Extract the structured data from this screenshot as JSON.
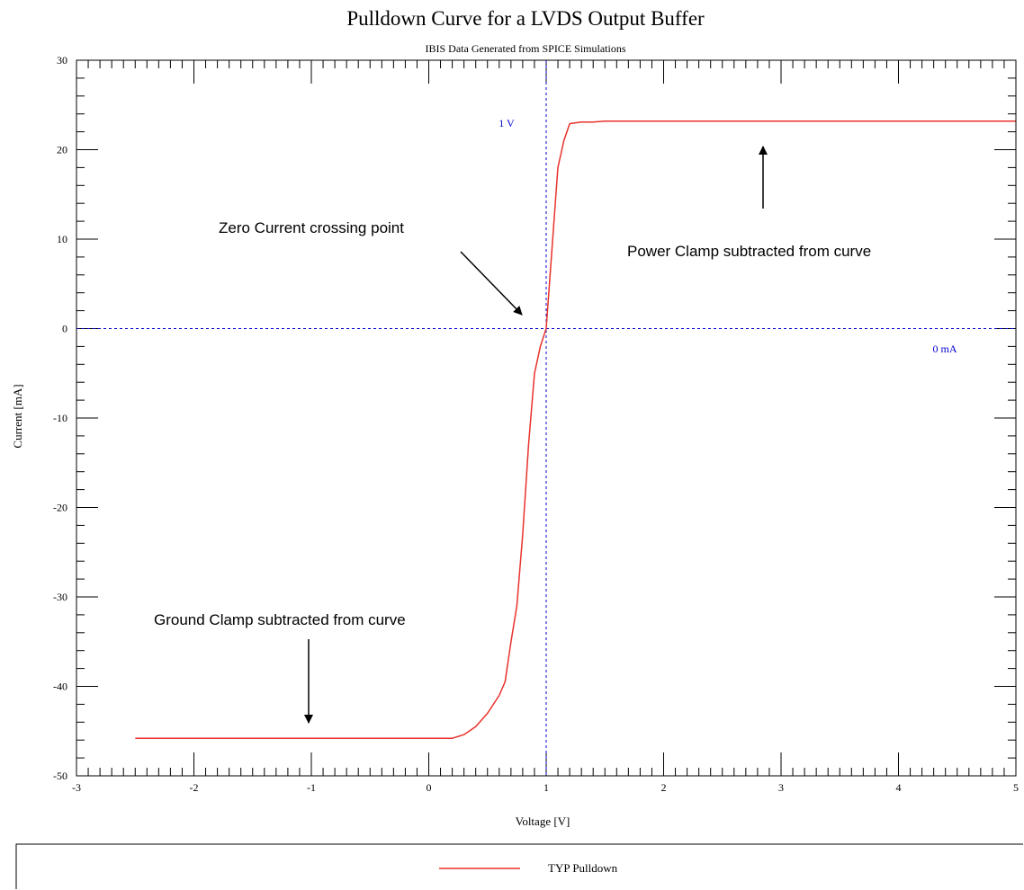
{
  "chart_data": {
    "type": "line",
    "title": "Pulldown Curve for a LVDS Output Buffer",
    "subtitle": "IBIS Data Generated from SPICE Simulations",
    "xlabel": "Voltage [V]",
    "ylabel": "Current [mA]",
    "xlim": [
      -3,
      5
    ],
    "ylim": [
      -50,
      30
    ],
    "x_ticks": [
      -3,
      -2,
      -1,
      0,
      1,
      2,
      3,
      4,
      5
    ],
    "y_ticks": [
      -50,
      -40,
      -30,
      -20,
      -10,
      0,
      10,
      20,
      30
    ],
    "x_tick_labels": [
      "-3",
      "-2",
      "-1",
      "0",
      "1",
      "2",
      "3",
      "4",
      "5"
    ],
    "y_tick_labels": [
      "-50",
      "-40",
      "-30",
      "-20",
      "-10",
      "0",
      "10",
      "20",
      "30"
    ],
    "grid": false,
    "legend_position": "bottom",
    "series": [
      {
        "name": "TYP Pulldown",
        "color": "#e8322b",
        "x": [
          -2.5,
          -2.0,
          -1.5,
          -1.0,
          -0.5,
          0.0,
          0.2,
          0.3,
          0.4,
          0.5,
          0.6,
          0.65,
          0.7,
          0.75,
          0.8,
          0.85,
          0.9,
          0.95,
          1.0,
          1.05,
          1.1,
          1.15,
          1.2,
          1.25,
          1.3,
          1.4,
          1.5,
          1.7,
          2.0,
          3.0,
          4.0,
          5.0
        ],
        "y": [
          -45.8,
          -45.8,
          -45.8,
          -45.8,
          -45.8,
          -45.8,
          -45.8,
          -45.4,
          -44.5,
          -43.0,
          -41.0,
          -39.5,
          -35.0,
          -31.0,
          -23.0,
          -13.0,
          -5.0,
          -2.0,
          0.0,
          9.0,
          18.0,
          21.0,
          22.9,
          23.0,
          23.1,
          23.1,
          23.2,
          23.2,
          23.2,
          23.2,
          23.2,
          23.2
        ]
      }
    ],
    "reference_lines": {
      "vertical": {
        "x": 1,
        "label": "1 V",
        "color": "#0000cc"
      },
      "horizontal": {
        "y": 0,
        "label": "0 mA",
        "color": "#0000cc"
      }
    },
    "annotations": [
      {
        "id": "zero",
        "text": "Zero Current crossing point"
      },
      {
        "id": "power",
        "text": "Power Clamp subtracted from curve"
      },
      {
        "id": "ground",
        "text": "Ground Clamp subtracted from curve"
      }
    ]
  }
}
